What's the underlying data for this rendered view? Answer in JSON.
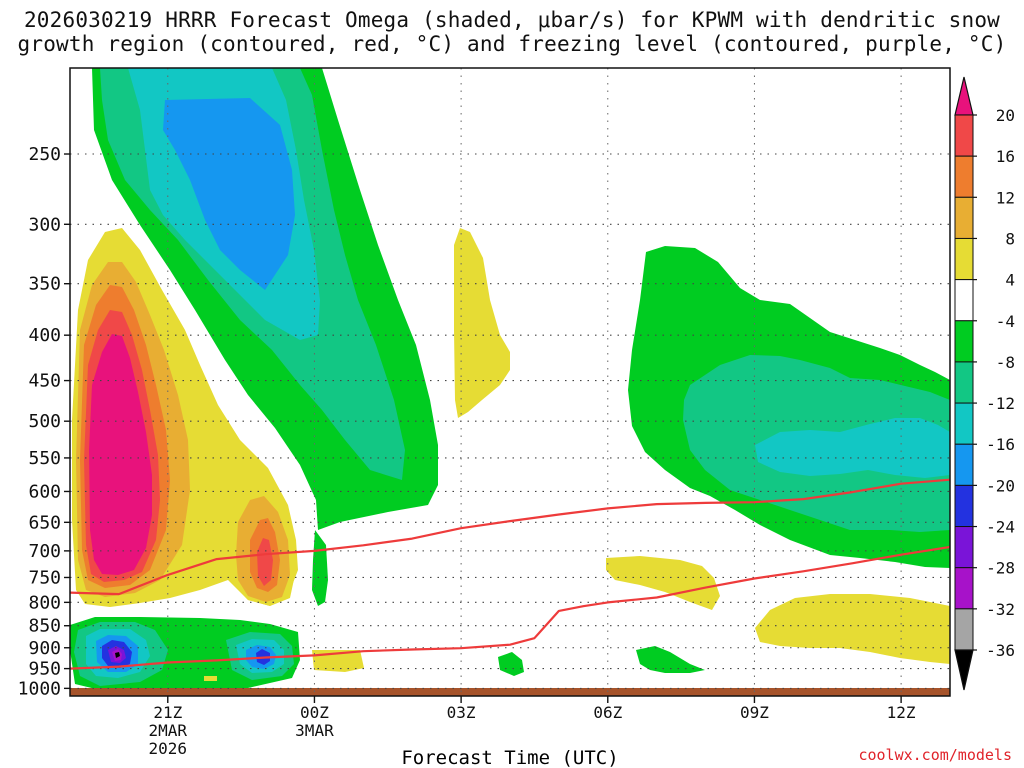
{
  "title_line1": "2026030219 HRRR Forecast Omega (shaded, μbar/s) for KPWM with dendritic snow",
  "title_line2": "growth region (contoured, red, °C) and freezing level (contoured, purple, °C)",
  "watermark": "coolwx.com/models",
  "chart_data": {
    "type": "time-height cross section",
    "xlabel": "Forecast Time (UTC)",
    "ylabel": "",
    "x_ticks": [
      {
        "label": "21Z",
        "sub1": "2MAR",
        "sub2": "2026",
        "hour": 2
      },
      {
        "label": "00Z",
        "sub1": "3MAR",
        "sub2": "",
        "hour": 5
      },
      {
        "label": "03Z",
        "sub1": "",
        "sub2": "",
        "hour": 8
      },
      {
        "label": "06Z",
        "sub1": "",
        "sub2": "",
        "hour": 11
      },
      {
        "label": "09Z",
        "sub1": "",
        "sub2": "",
        "hour": 14
      },
      {
        "label": "12Z",
        "sub1": "",
        "sub2": "",
        "hour": 17
      }
    ],
    "xlim_hours": [
      0,
      18
    ],
    "y_axis": "pressure (hPa), log scale, inverted",
    "y_ticks": [
      250,
      300,
      350,
      400,
      450,
      500,
      550,
      600,
      650,
      700,
      750,
      800,
      850,
      900,
      950,
      1000
    ],
    "ylim_hPa": [
      200,
      1020
    ],
    "colorbar": {
      "labels": [
        "20",
        "16",
        "12",
        "8",
        "4",
        "-4",
        "-8",
        "-12",
        "-16",
        "-20",
        "-24",
        "-28",
        "-32",
        "-36"
      ],
      "bands": [
        {
          "lo": 20,
          "hi": null,
          "color": "#e8127c"
        },
        {
          "lo": 16,
          "hi": 20,
          "color": "#f04848"
        },
        {
          "lo": 12,
          "hi": 16,
          "color": "#ee7d2e"
        },
        {
          "lo": 8,
          "hi": 12,
          "color": "#e8ae33"
        },
        {
          "lo": 4,
          "hi": 8,
          "color": "#e6dc34"
        },
        {
          "lo": -4,
          "hi": 4,
          "color": "#ffffff"
        },
        {
          "lo": -8,
          "hi": -4,
          "color": "#00cc21"
        },
        {
          "lo": -12,
          "hi": -8,
          "color": "#12c784"
        },
        {
          "lo": -16,
          "hi": -12,
          "color": "#12c7c4"
        },
        {
          "lo": -20,
          "hi": -16,
          "color": "#1597f0"
        },
        {
          "lo": -24,
          "hi": -20,
          "color": "#2332e0"
        },
        {
          "lo": -28,
          "hi": -24,
          "color": "#7a14d8"
        },
        {
          "lo": -32,
          "hi": -28,
          "color": "#a712c9"
        },
        {
          "lo": -36,
          "hi": -32,
          "color": "#a5a5a5"
        },
        {
          "lo": null,
          "hi": -36,
          "color": "#000000"
        }
      ]
    },
    "red_contours": [
      {
        "points": [
          [
            0,
            780
          ],
          [
            1,
            783
          ],
          [
            2,
            745
          ],
          [
            3,
            715
          ],
          [
            4,
            706
          ],
          [
            5,
            700
          ],
          [
            6,
            690
          ],
          [
            7,
            678
          ],
          [
            8,
            660
          ],
          [
            9,
            648
          ],
          [
            10,
            637
          ],
          [
            11,
            627
          ],
          [
            12,
            620
          ],
          [
            13,
            618
          ],
          [
            14,
            617
          ],
          [
            15,
            612
          ],
          [
            16,
            601
          ],
          [
            17,
            588
          ],
          [
            18,
            582
          ]
        ]
      },
      {
        "points": [
          [
            0,
            950
          ],
          [
            1,
            945
          ],
          [
            2,
            935
          ],
          [
            3,
            930
          ],
          [
            4,
            923
          ],
          [
            5,
            918
          ],
          [
            6,
            908
          ],
          [
            7,
            904
          ],
          [
            8,
            901
          ],
          [
            9,
            893
          ],
          [
            9.5,
            878
          ],
          [
            10,
            818
          ],
          [
            10.5,
            808
          ],
          [
            11,
            800
          ],
          [
            12,
            790
          ],
          [
            13,
            770
          ],
          [
            14,
            752
          ],
          [
            15,
            738
          ],
          [
            16,
            723
          ],
          [
            17,
            707
          ],
          [
            18,
            693
          ]
        ]
      }
    ],
    "surface_color": "#a6532a",
    "shading_note": "filled omega regions approximated from the figure"
  }
}
